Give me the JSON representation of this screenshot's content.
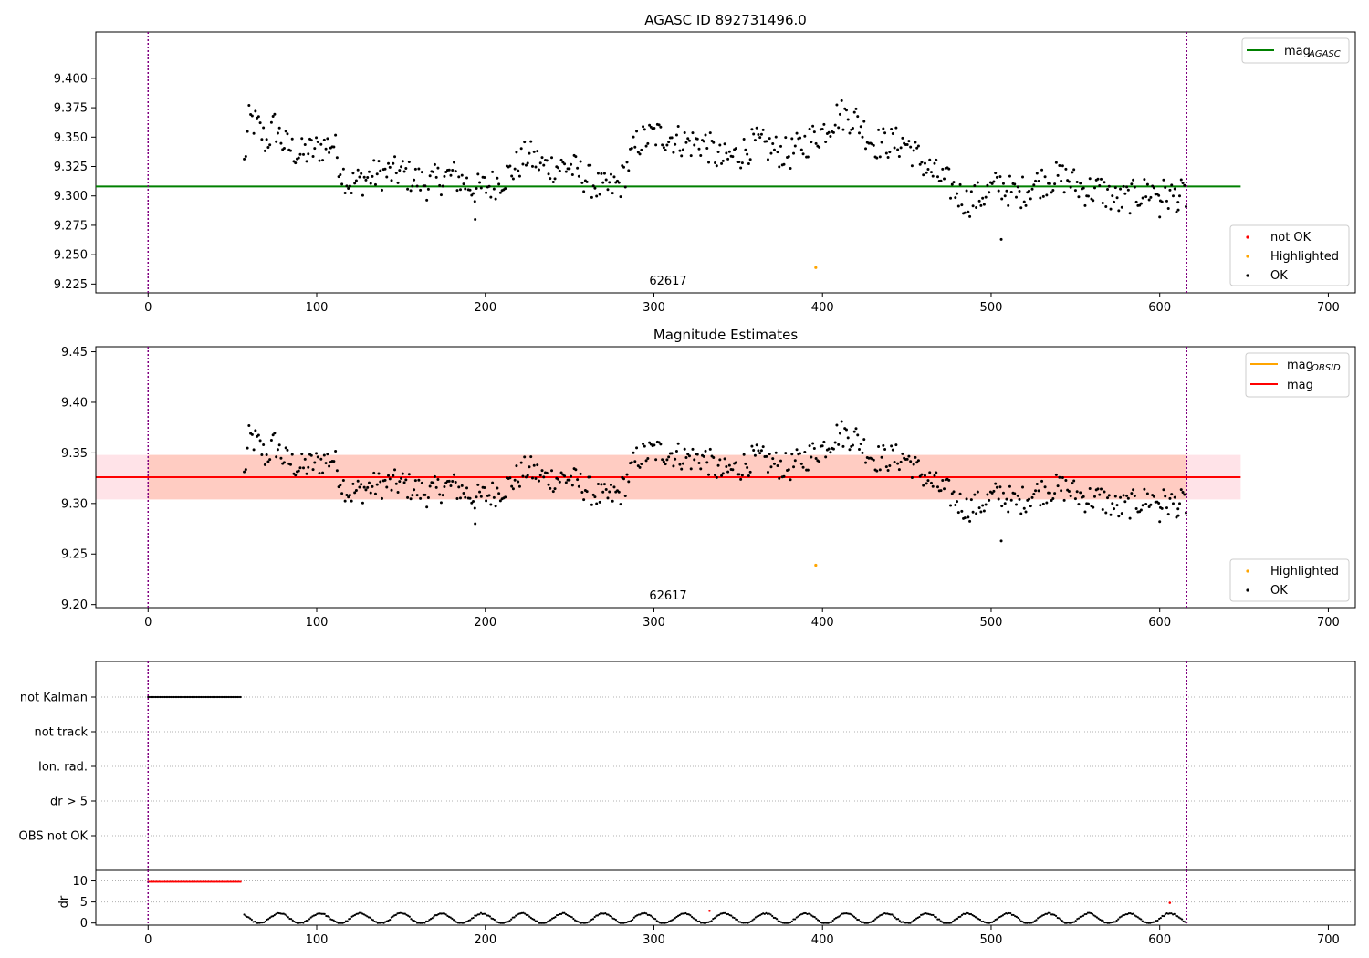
{
  "figure_title": "AGASC ID 892731496.0",
  "panel2_title": "Magnitude Estimates",
  "obsid_label": "62617",
  "colors": {
    "ok": "#000000",
    "highlighted": "#ffa500",
    "not_ok": "#ff0000",
    "agasc_line": "#008000",
    "mag_line": "#ff0000",
    "obsid_line": "#ffa500",
    "band_outer": "#ffc0cb",
    "band_inner": "#ffa07a",
    "obs_boundary": "#800080"
  },
  "legend1_top": {
    "label": "mag",
    "sub": "AGASC"
  },
  "legend1_bottom": [
    "not OK",
    "Highlighted",
    "OK"
  ],
  "legend2_top": [
    {
      "label": "mag",
      "sub": "OBSID"
    },
    {
      "label": "mag",
      "sub": ""
    }
  ],
  "legend2_bottom": [
    "Highlighted",
    "OK"
  ],
  "flag_labels": [
    "not Kalman",
    "not track",
    "Ion. rad.",
    "dr > 5",
    "OBS not OK"
  ],
  "dr_label": "dr",
  "x_ticks": [
    "0",
    "100",
    "200",
    "300",
    "400",
    "500",
    "600",
    "700"
  ],
  "y_ticks_panel1": [
    "9.225",
    "9.250",
    "9.275",
    "9.300",
    "9.325",
    "9.350",
    "9.375",
    "9.400"
  ],
  "y_ticks_panel2": [
    "9.20",
    "9.25",
    "9.30",
    "9.35",
    "9.40",
    "9.45"
  ],
  "y_ticks_dr": [
    "0",
    "5",
    "10"
  ],
  "chart_data": [
    {
      "type": "scatter",
      "title": "AGASC ID 892731496.0",
      "xlim": [
        -31,
        716
      ],
      "ylim": [
        9.2175,
        9.4395
      ],
      "obs_boundaries_x": [
        0,
        616
      ],
      "mag_agasc": 9.308,
      "annotation": "62617",
      "highlighted_points": [
        {
          "x": 396,
          "y": 9.239
        }
      ],
      "ok_series_anchor_points": [
        [
          57,
          9.327
        ],
        [
          60,
          9.365
        ],
        [
          65,
          9.36
        ],
        [
          70,
          9.345
        ],
        [
          75,
          9.36
        ],
        [
          80,
          9.345
        ],
        [
          90,
          9.335
        ],
        [
          100,
          9.34
        ],
        [
          110,
          9.345
        ],
        [
          115,
          9.32
        ],
        [
          120,
          9.31
        ],
        [
          135,
          9.318
        ],
        [
          150,
          9.32
        ],
        [
          165,
          9.31
        ],
        [
          180,
          9.318
        ],
        [
          195,
          9.305
        ],
        [
          205,
          9.31
        ],
        [
          215,
          9.32
        ],
        [
          225,
          9.335
        ],
        [
          235,
          9.325
        ],
        [
          250,
          9.325
        ],
        [
          260,
          9.315
        ],
        [
          270,
          9.305
        ],
        [
          280,
          9.31
        ],
        [
          290,
          9.345
        ],
        [
          300,
          9.352
        ],
        [
          310,
          9.35
        ],
        [
          320,
          9.345
        ],
        [
          330,
          9.345
        ],
        [
          340,
          9.33
        ],
        [
          350,
          9.335
        ],
        [
          360,
          9.345
        ],
        [
          370,
          9.34
        ],
        [
          380,
          9.335
        ],
        [
          390,
          9.345
        ],
        [
          400,
          9.355
        ],
        [
          410,
          9.37
        ],
        [
          420,
          9.365
        ],
        [
          430,
          9.345
        ],
        [
          440,
          9.345
        ],
        [
          450,
          9.345
        ],
        [
          455,
          9.335
        ],
        [
          465,
          9.32
        ],
        [
          475,
          9.31
        ],
        [
          485,
          9.295
        ],
        [
          495,
          9.3
        ],
        [
          505,
          9.31
        ],
        [
          515,
          9.3
        ],
        [
          525,
          9.31
        ],
        [
          535,
          9.315
        ],
        [
          545,
          9.315
        ],
        [
          555,
          9.305
        ],
        [
          565,
          9.305
        ],
        [
          575,
          9.295
        ],
        [
          585,
          9.3
        ],
        [
          595,
          9.305
        ],
        [
          605,
          9.3
        ],
        [
          615,
          9.3
        ]
      ],
      "outlier_points": [
        [
          194,
          9.28
        ],
        [
          506,
          9.263
        ],
        [
          600,
          9.282
        ],
        [
          611,
          9.288
        ]
      ],
      "legend": [
        "mag AGASC",
        "not OK",
        "Highlighted",
        "OK"
      ]
    },
    {
      "type": "scatter",
      "title": "Magnitude Estimates",
      "xlim": [
        -31,
        716
      ],
      "ylim": [
        9.197,
        9.455
      ],
      "obs_boundaries_x": [
        0,
        616
      ],
      "mag": 9.326,
      "mag_obsid": 9.326,
      "band_outer": [
        9.304,
        9.348
      ],
      "band_inner": [
        9.304,
        9.348
      ],
      "band_inner_x": [
        0,
        616
      ],
      "annotation": "62617",
      "highlighted_points": [
        {
          "x": 396,
          "y": 9.239
        }
      ],
      "legend": [
        "mag OBSID",
        "mag",
        "Highlighted",
        "OK"
      ]
    },
    {
      "type": "scatter",
      "title": "",
      "categories": [
        "not Kalman",
        "not track",
        "Ion. rad.",
        "dr > 5",
        "OBS not OK"
      ],
      "not_kalman_x_range": [
        0,
        55
      ],
      "obs_boundaries_x": [
        0,
        616
      ]
    },
    {
      "type": "scatter",
      "title": "",
      "ylabel": "dr",
      "ylim": [
        -0.5,
        12.5
      ],
      "xlim": [
        -31,
        716
      ],
      "not_ok_x_range": [
        0,
        55
      ],
      "not_ok_y": 9.8,
      "ok_dr_range": [
        0.2,
        2.8
      ],
      "extra_not_ok_points": [
        {
          "x": 333,
          "y": 2.9
        },
        {
          "x": 606,
          "y": 4.8
        }
      ]
    }
  ]
}
